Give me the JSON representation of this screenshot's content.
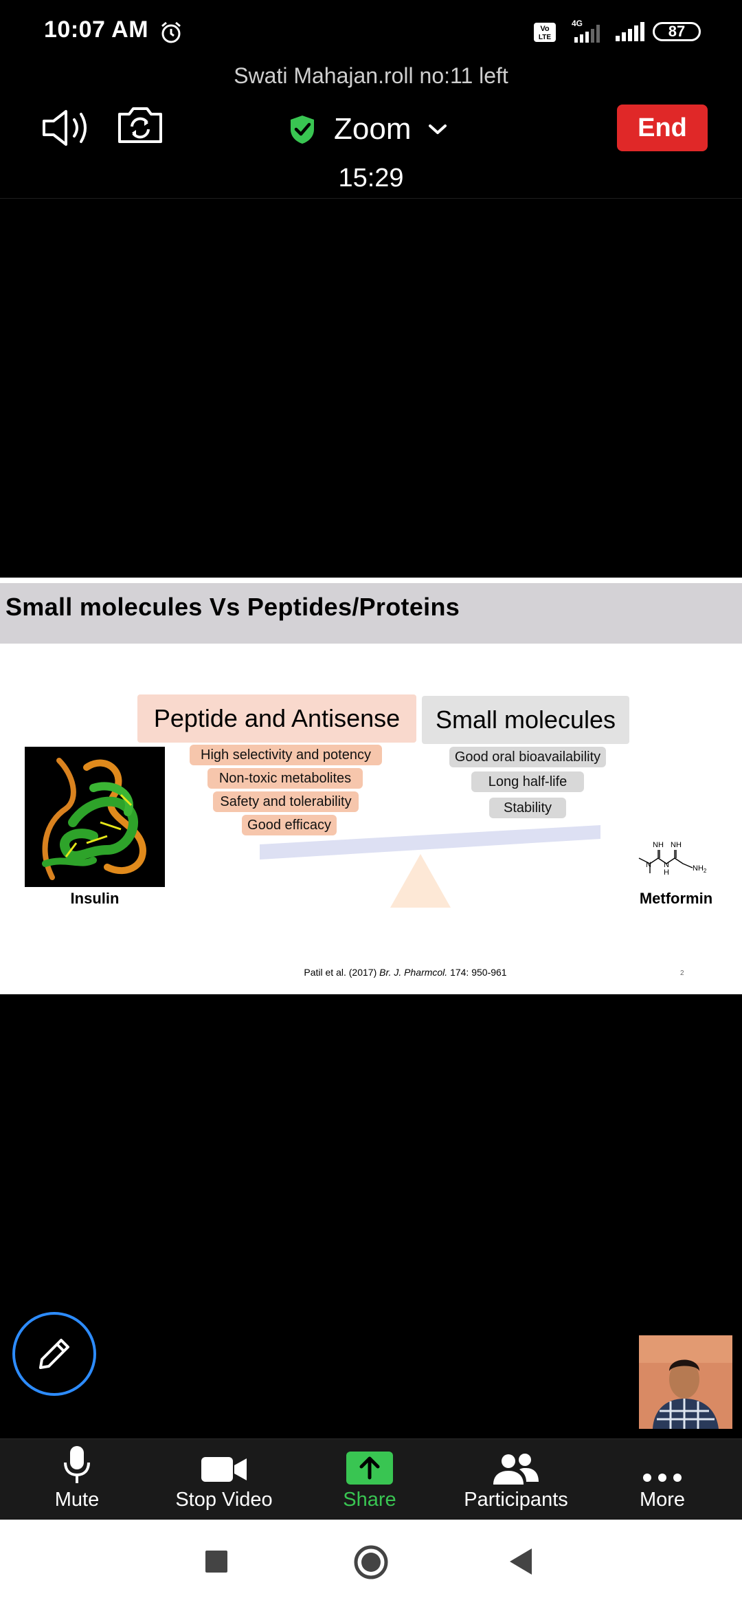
{
  "status_bar": {
    "time": "10:07 AM",
    "battery": "87",
    "icons": [
      "alarm-icon",
      "volte-icon",
      "signal-4g-icon",
      "signal-icon",
      "battery-icon"
    ]
  },
  "meeting": {
    "notice": "Swati Mahajan.roll no:11 left",
    "title": "Zoom",
    "timer": "15:29",
    "end_label": "End",
    "colors": {
      "end": "#e02828",
      "shield": "#39c552",
      "accent": "#2d8cff"
    }
  },
  "slide": {
    "title": "Small molecules Vs Peptides/Proteins",
    "peptide": {
      "heading": "Peptide and Antisense",
      "points": [
        "High selectivity and potency",
        "Non-toxic metabolites",
        "Safety and tolerability",
        "Good efficacy"
      ]
    },
    "small": {
      "heading": "Small molecules",
      "points": [
        "Good oral bioavailability",
        "Long half-life",
        "Stability"
      ]
    },
    "insulin_label": "Insulin",
    "metformin_label": "Metformin",
    "metformin_atoms": {
      "nh_left": "NH",
      "nh_right": "NH",
      "n_mid": "N",
      "h_mid": "H",
      "n_left": "N",
      "nh2": "NH",
      "sub2": "2"
    },
    "citation": {
      "authors": "Patil et al. (2017) ",
      "journal": "Br. J. Pharmcol.",
      "pages": " 174: 950-961"
    },
    "slide_number": "2"
  },
  "toolbar": {
    "mute": "Mute",
    "stop_video": "Stop Video",
    "share": "Share",
    "participants": "Participants",
    "more": "More"
  }
}
